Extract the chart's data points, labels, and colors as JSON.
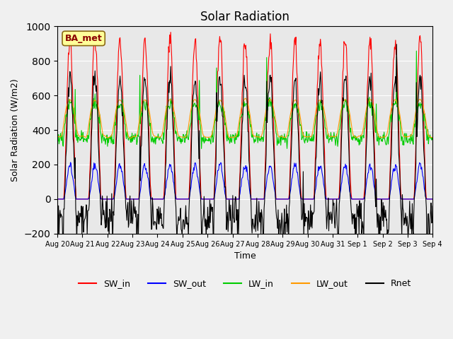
{
  "title": "Solar Radiation",
  "xlabel": "Time",
  "ylabel": "Solar Radiation (W/m2)",
  "ylim": [
    -200,
    1000
  ],
  "annotation": "BA_met",
  "background_color": "#e8e8e8",
  "legend_entries": [
    "SW_in",
    "SW_out",
    "LW_in",
    "LW_out",
    "Rnet"
  ],
  "line_colors": {
    "SW_in": "#ff0000",
    "SW_out": "#0000ff",
    "LW_in": "#00cc00",
    "LW_out": "#ff9900",
    "Rnet": "#000000"
  },
  "xtick_labels": [
    "Aug 20",
    "Aug 21",
    "Aug 22",
    "Aug 23",
    "Aug 24",
    "Aug 25",
    "Aug 26",
    "Aug 27",
    "Aug 28",
    "Aug 29",
    "Aug 30",
    "Aug 31",
    "Sep 1",
    "Sep 2",
    "Sep 3",
    "Sep 4"
  ],
  "n_days": 15,
  "pts_per_day": 48
}
